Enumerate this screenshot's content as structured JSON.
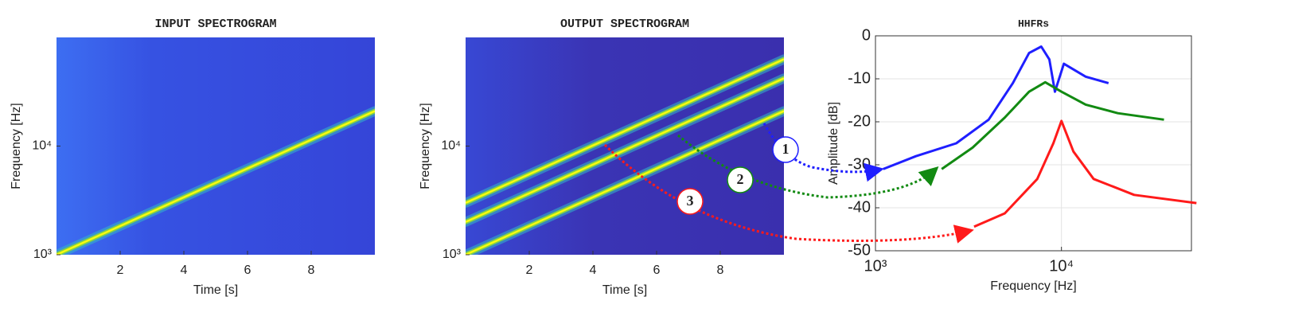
{
  "chart_data": [
    {
      "type": "spectrogram",
      "title": "INPUT SPECTROGRAM",
      "xlabel": "Time [s]",
      "ylabel": "Frequency [Hz]",
      "xlim": [
        0,
        10
      ],
      "ylim": [
        1000,
        100000
      ],
      "ylog": true,
      "xticks": [
        2,
        4,
        6,
        8
      ],
      "yticks": [
        {
          "value": 1000,
          "label": "10³"
        },
        {
          "value": 10000,
          "label": "10⁴"
        }
      ],
      "series": [
        {
          "color": "#f9fb0e",
          "x": [
            0,
            10
          ],
          "values": [
            1000,
            21000
          ]
        }
      ]
    },
    {
      "type": "spectrogram",
      "title": "OUTPUT SPECTROGRAM",
      "xlabel": "Time [s]",
      "ylabel": "Frequency [Hz]",
      "xlim": [
        0,
        10
      ],
      "ylim": [
        1000,
        100000
      ],
      "ylog": true,
      "xticks": [
        2,
        4,
        6,
        8
      ],
      "yticks": [
        {
          "value": 1000,
          "label": "10³"
        },
        {
          "value": 10000,
          "label": "10⁴"
        }
      ],
      "series": [
        {
          "color": "#f9fb0e",
          "x": [
            0,
            10
          ],
          "values": [
            1000,
            21000
          ]
        },
        {
          "color": "#f9fb0e",
          "x": [
            0,
            10
          ],
          "values": [
            2000,
            42000
          ]
        },
        {
          "color": "#f9fb0e",
          "x": [
            0,
            10
          ],
          "values": [
            3000,
            63000
          ]
        }
      ]
    },
    {
      "type": "line",
      "title": "HHFRs",
      "xlabel": "Frequency [Hz]",
      "ylabel": "Amplitude [dB]",
      "xlim": [
        1000,
        50000
      ],
      "ylim": [
        -50,
        0
      ],
      "xlog": true,
      "grid": true,
      "xticks": [
        {
          "value": 1000,
          "label": "10³"
        },
        {
          "value": 10000,
          "label": "10⁴"
        }
      ],
      "yticks": [
        0,
        -10,
        -20,
        -30,
        -40,
        -50
      ],
      "series": [
        {
          "color": "#1f1fff",
          "x": [
            1100,
            1650,
            2720,
            4060,
            5480,
            6700,
            7790,
            8610,
            9230,
            10300,
            13500,
            17900
          ],
          "values": [
            -31,
            -28,
            -25,
            -19.5,
            -11,
            -4,
            -2.5,
            -5.5,
            -13,
            -6.5,
            -9.5,
            -11
          ]
        },
        {
          "color": "#128a12",
          "x": [
            2270,
            3330,
            4960,
            6700,
            8180,
            10000,
            13500,
            20100,
            35600
          ],
          "values": [
            -31,
            -26,
            -19,
            -13,
            -10.8,
            -13,
            -16,
            -18,
            -19.5
          ]
        },
        {
          "color": "#ff1a1a",
          "x": [
            3390,
            4960,
            7410,
            9050,
            10000,
            11600,
            14900,
            24600,
            53200
          ],
          "values": [
            -44.4,
            -41.3,
            -33.3,
            -25,
            -19.8,
            -26.9,
            -33.3,
            -37,
            -38.9
          ]
        }
      ]
    }
  ],
  "annotations": [
    {
      "text": "1",
      "color": "#1f1fff"
    },
    {
      "text": "2",
      "color": "#128a12"
    },
    {
      "text": "3",
      "color": "#ff1a1a"
    }
  ]
}
